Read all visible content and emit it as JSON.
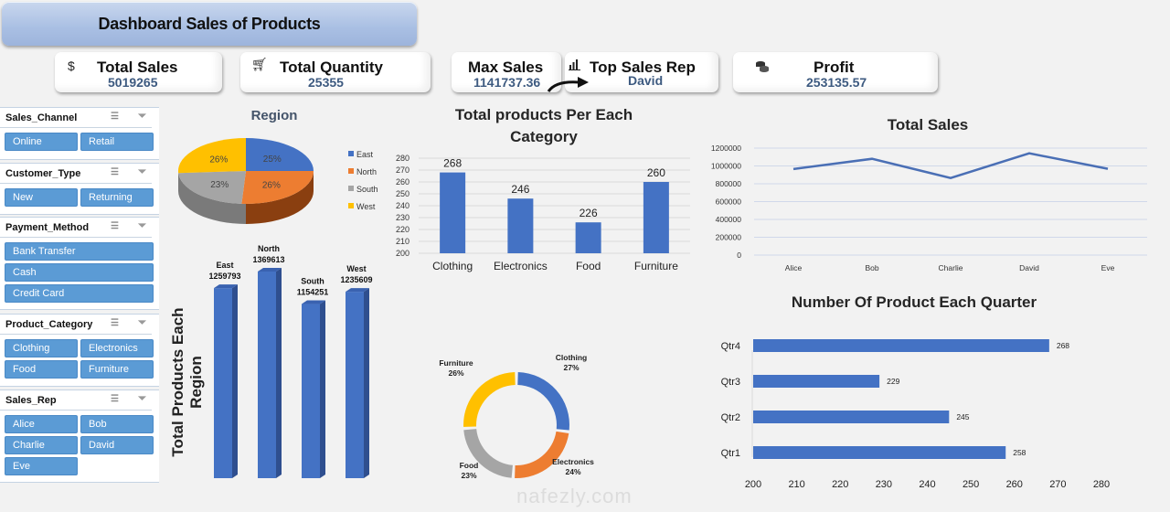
{
  "header": {
    "title": "Dashboard Sales of Products"
  },
  "kpis": [
    {
      "label": "Total Sales",
      "value": "5019265",
      "icon": "dollar-icon"
    },
    {
      "label": "Total Quantity",
      "value": "25355",
      "icon": "cart-icon"
    },
    {
      "label": "Max Sales",
      "value": "1141737.36",
      "icon": "none"
    },
    {
      "label": "Top Sales Rep",
      "value": "David",
      "icon": "bar-chart-icon"
    },
    {
      "label": "Profit",
      "value": "253135.57",
      "icon": "coins-icon"
    }
  ],
  "slicers": [
    {
      "title": "Sales_Channel",
      "items": [
        "Online",
        "Retail"
      ]
    },
    {
      "title": "Customer_Type",
      "items": [
        "New",
        "Returning"
      ]
    },
    {
      "title": "Payment_Method",
      "items": [
        "Bank Transfer",
        "Cash",
        "Credit Card"
      ]
    },
    {
      "title": "Product_Category",
      "items": [
        "Clothing",
        "Electronics",
        "Food",
        "Furniture"
      ]
    },
    {
      "title": "Sales_Rep",
      "items": [
        "Alice",
        "Bob",
        "Charlie",
        "David",
        "Eve"
      ]
    }
  ],
  "watermark": "nafezly.com",
  "colors": {
    "blue": "#4472c4",
    "orange": "#ed7d31",
    "gray": "#a5a5a5",
    "yellow": "#ffc000",
    "slicer": "#5b9bd5",
    "kpi_value": "#3d5a80"
  },
  "chart_data": [
    {
      "id": "region-pie",
      "type": "pie",
      "title": "Region",
      "categories": [
        "East",
        "North",
        "South",
        "West"
      ],
      "values": [
        25,
        26,
        23,
        26
      ],
      "labels": [
        "25%",
        "26%",
        "23%",
        "26%"
      ],
      "legend": "right"
    },
    {
      "id": "category-bar",
      "type": "bar",
      "title": "Total products Per Each Category",
      "categories": [
        "Clothing",
        "Electronics",
        "Food",
        "Furniture"
      ],
      "values": [
        268,
        246,
        226,
        260
      ],
      "ylim": [
        200,
        280
      ],
      "yticks": [
        200,
        210,
        220,
        230,
        240,
        250,
        260,
        270,
        280
      ],
      "grid": true
    },
    {
      "id": "sales-line",
      "type": "line",
      "title": "Total Sales",
      "categories": [
        "Alice",
        "Bob",
        "Charlie",
        "David",
        "Eve"
      ],
      "values": [
        965000,
        1080000,
        865000,
        1141737,
        968000
      ],
      "ylim": [
        0,
        1200000
      ],
      "yticks": [
        0,
        200000,
        400000,
        600000,
        800000,
        1000000,
        1200000
      ],
      "grid": true
    },
    {
      "id": "region-bar3d",
      "type": "bar",
      "title": "Total Products Each Region",
      "categories": [
        "East",
        "North",
        "South",
        "West"
      ],
      "values": [
        1259793,
        1369613,
        1154251,
        1235609
      ]
    },
    {
      "id": "category-donut",
      "type": "pie",
      "title": "",
      "categories": [
        "Clothing",
        "Electronics",
        "Food",
        "Furniture"
      ],
      "values": [
        27,
        24,
        23,
        26
      ],
      "labels": [
        "27%",
        "24%",
        "23%",
        "26%"
      ]
    },
    {
      "id": "quarter-hbar",
      "type": "bar",
      "title": "Number Of  Product Each Quarter",
      "categories": [
        "Qtr1",
        "Qtr2",
        "Qtr3",
        "Qtr4"
      ],
      "values": [
        258,
        245,
        229,
        268
      ],
      "xlim": [
        200,
        280
      ],
      "xticks": [
        200,
        210,
        220,
        230,
        240,
        250,
        260,
        270,
        280
      ]
    }
  ]
}
